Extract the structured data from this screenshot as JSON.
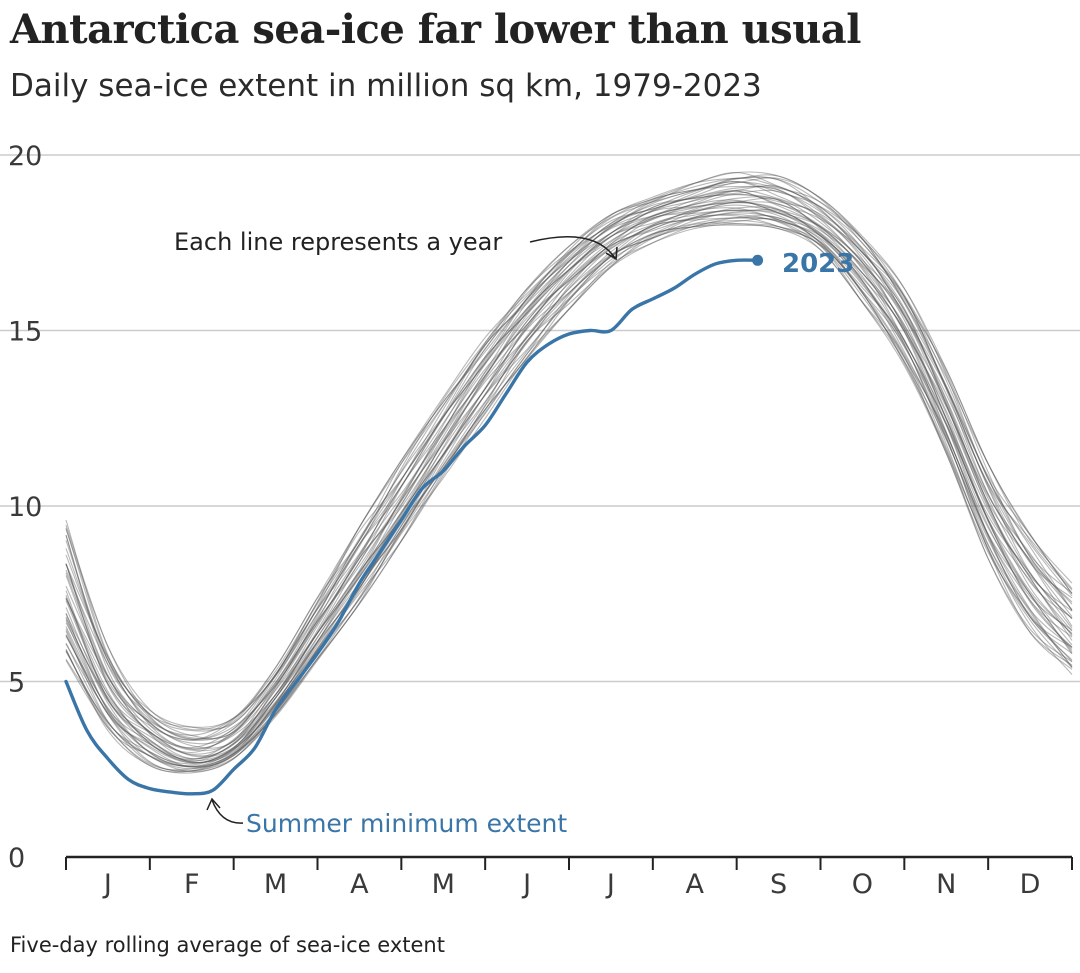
{
  "header": {
    "title": "Antarctica sea-ice far lower than usual",
    "subtitle": "Daily sea-ice extent in million sq km, 1979-2023"
  },
  "footer": {
    "note": "Five-day rolling average of sea-ice extent"
  },
  "colors": {
    "highlight": "#3a75a8",
    "history": "#555555",
    "grid": "#cccccc",
    "axis": "#222222",
    "text": "#222222"
  },
  "chart_data": {
    "type": "line",
    "xlabel": "",
    "ylabel": "",
    "ylim": [
      0,
      20
    ],
    "xlim": [
      0,
      12
    ],
    "grid": true,
    "legend": "none",
    "y_ticks": [
      0,
      5,
      10,
      15,
      20
    ],
    "month_labels": [
      "J",
      "F",
      "M",
      "A",
      "M",
      "J",
      "J",
      "A",
      "S",
      "O",
      "N",
      "D"
    ],
    "annotations": {
      "years": "Each line represents a year",
      "minimum": "Summer minimum extent",
      "highlight_label": "2023"
    },
    "historical_band": {
      "label": "Each line represents a year",
      "x": [
        0,
        0.5,
        1,
        1.5,
        2,
        2.5,
        3,
        3.5,
        4,
        4.5,
        5,
        5.5,
        6,
        6.5,
        7,
        7.5,
        8,
        8.5,
        9,
        9.5,
        10,
        10.5,
        11,
        11.5,
        12
      ],
      "low": [
        5.6,
        3.6,
        2.6,
        2.4,
        2.8,
        4.0,
        5.6,
        7.2,
        9.0,
        10.8,
        12.5,
        14.2,
        15.6,
        16.8,
        17.5,
        17.9,
        18.0,
        17.9,
        17.3,
        15.8,
        14.0,
        11.5,
        8.5,
        6.4,
        5.2
      ],
      "mid": [
        7.2,
        4.6,
        3.4,
        2.8,
        3.2,
        4.6,
        6.4,
        8.2,
        10.0,
        11.9,
        13.7,
        15.3,
        16.6,
        17.6,
        18.2,
        18.5,
        18.7,
        18.5,
        17.9,
        16.8,
        15.1,
        12.6,
        9.8,
        7.8,
        6.4
      ],
      "high": [
        9.6,
        6.0,
        4.2,
        3.7,
        4.0,
        5.4,
        7.4,
        9.4,
        11.3,
        13.1,
        14.8,
        16.2,
        17.4,
        18.3,
        18.8,
        19.2,
        19.5,
        19.4,
        18.8,
        17.7,
        16.2,
        13.9,
        11.2,
        9.2,
        7.8
      ]
    },
    "series": [
      {
        "name": "2023",
        "x": [
          0,
          0.25,
          0.5,
          0.75,
          1,
          1.25,
          1.5,
          1.75,
          2,
          2.25,
          2.5,
          2.75,
          3,
          3.25,
          3.5,
          3.75,
          4,
          4.25,
          4.5,
          4.75,
          5,
          5.25,
          5.5,
          5.75,
          6,
          6.25,
          6.5,
          6.75,
          7,
          7.25,
          7.5,
          7.75,
          8,
          8.25
        ],
        "values": [
          5.0,
          3.6,
          2.8,
          2.2,
          1.95,
          1.85,
          1.8,
          1.9,
          2.5,
          3.1,
          4.2,
          5.0,
          5.8,
          6.7,
          7.8,
          8.7,
          9.6,
          10.5,
          11.0,
          11.7,
          12.3,
          13.2,
          14.1,
          14.6,
          14.9,
          15.0,
          15.0,
          15.6,
          15.9,
          16.2,
          16.6,
          16.9,
          17.0,
          17.0
        ]
      }
    ]
  }
}
